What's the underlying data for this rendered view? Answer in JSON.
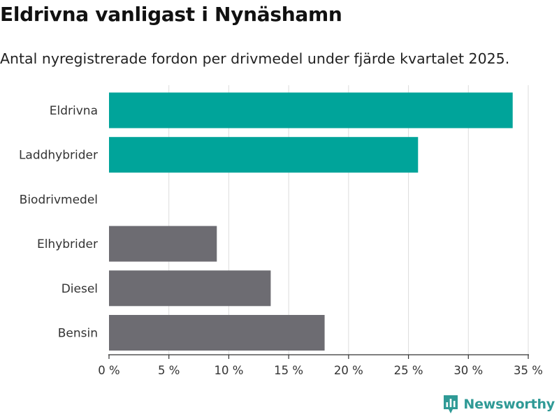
{
  "header": {
    "title": "Eldrivna vanligast i Nynäshamn",
    "subtitle": "Antal nyregistrerade fordon per drivmedel under fjärde kvartalet 2025."
  },
  "brand": {
    "name": "Newsworthy",
    "icon": "bar-chart-logo-icon",
    "color": "#2f9a96"
  },
  "colors": {
    "highlight": "#00a49a",
    "default": "#6d6c72",
    "grid": "#dddddd",
    "axis": "#333333"
  },
  "chart_data": {
    "type": "bar",
    "orientation": "horizontal",
    "title": "Eldrivna vanligast i Nynäshamn",
    "subtitle": "Antal nyregistrerade fordon per drivmedel under fjärde kvartalet 2025.",
    "categories": [
      "Eldrivna",
      "Laddhybrider",
      "Biodrivmedel",
      "Elhybrider",
      "Diesel",
      "Bensin"
    ],
    "values": [
      33.7,
      25.8,
      0,
      9.0,
      13.5,
      18.0
    ],
    "highlight": [
      true,
      true,
      false,
      false,
      false,
      false
    ],
    "xlim": [
      0,
      35
    ],
    "xticks": [
      0,
      5,
      10,
      15,
      20,
      25,
      30,
      35
    ],
    "xtick_labels": [
      "0 %",
      "5 %",
      "10 %",
      "15 %",
      "20 %",
      "25 %",
      "30 %",
      "35 %"
    ],
    "xlabel": "",
    "ylabel": "",
    "unit": "%",
    "grid": "vertical"
  }
}
